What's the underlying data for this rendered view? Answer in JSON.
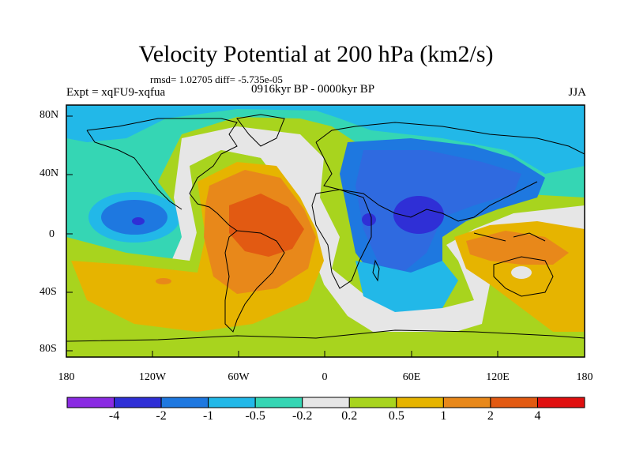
{
  "title": "Velocity Potential at 200 hPa (km2/s)",
  "stats": "rmsd= 1.02705 diff= -5.735e-05",
  "experiment": "Expt = xqFU9-xqfua",
  "period": "0916kyr BP - 0000kyr BP",
  "season": "JJA",
  "lat_ticks": [
    "80N",
    "40N",
    "0",
    "40S",
    "80S"
  ],
  "lon_ticks": [
    "180",
    "120W",
    "60W",
    "0",
    "60E",
    "120E",
    "180"
  ],
  "colorbar": {
    "labels": [
      "-4",
      "-2",
      "-1",
      "-0.5",
      "-0.2",
      "0.2",
      "0.5",
      "1",
      "2",
      "4"
    ],
    "colors": [
      "#8a2be2",
      "#2f2fd6",
      "#1e78e0",
      "#22b8e8",
      "#35d6b4",
      "#e6e6e6",
      "#a8d41e",
      "#e6b400",
      "#e8881a",
      "#e25a12",
      "#e01010"
    ]
  }
}
